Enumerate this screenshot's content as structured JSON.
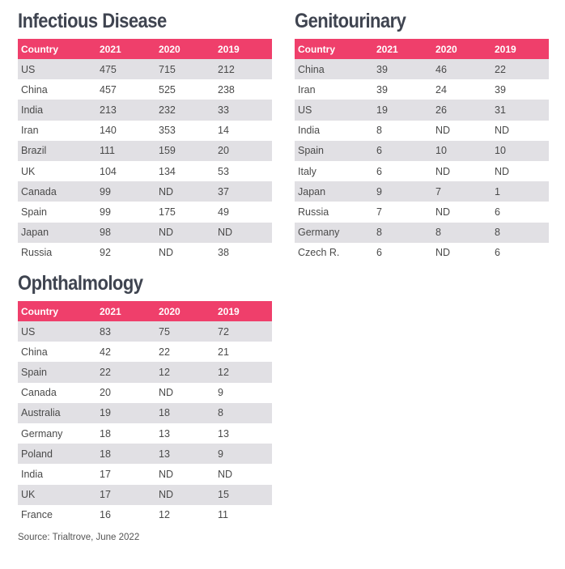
{
  "tables": {
    "infectious": {
      "title": "Infectious Disease",
      "headers": [
        "Country",
        "2021",
        "2020",
        "2019"
      ],
      "rows": [
        [
          "US",
          "475",
          "715",
          "212"
        ],
        [
          "China",
          "457",
          "525",
          "238"
        ],
        [
          "India",
          "213",
          "232",
          "33"
        ],
        [
          "Iran",
          "140",
          "353",
          "14"
        ],
        [
          "Brazil",
          "111",
          "159",
          "20"
        ],
        [
          "UK",
          "104",
          "134",
          "53"
        ],
        [
          "Canada",
          "99",
          "ND",
          "37"
        ],
        [
          "Spain",
          "99",
          "175",
          "49"
        ],
        [
          "Japan",
          "98",
          "ND",
          "ND"
        ],
        [
          "Russia",
          "92",
          "ND",
          "38"
        ]
      ]
    },
    "genitourinary": {
      "title": "Genitourinary",
      "headers": [
        "Country",
        "2021",
        "2020",
        "2019"
      ],
      "rows": [
        [
          "China",
          "39",
          "46",
          "22"
        ],
        [
          "Iran",
          "39",
          "24",
          "39"
        ],
        [
          "US",
          "19",
          "26",
          "31"
        ],
        [
          "India",
          "8",
          "ND",
          "ND"
        ],
        [
          "Spain",
          "6",
          "10",
          "10"
        ],
        [
          "Italy",
          "6",
          "ND",
          "ND"
        ],
        [
          "Japan",
          "9",
          "7",
          "1"
        ],
        [
          "Russia",
          "7",
          "ND",
          "6"
        ],
        [
          "Germany",
          "8",
          "8",
          "8"
        ],
        [
          "Czech R.",
          "6",
          "ND",
          "6"
        ]
      ]
    },
    "ophthalmology": {
      "title": "Ophthalmology",
      "headers": [
        "Country",
        "2021",
        "2020",
        "2019"
      ],
      "rows": [
        [
          "US",
          "83",
          "75",
          "72"
        ],
        [
          "China",
          "42",
          "22",
          "21"
        ],
        [
          "Spain",
          "22",
          "12",
          "12"
        ],
        [
          "Canada",
          "20",
          "ND",
          "9"
        ],
        [
          "Australia",
          "19",
          "18",
          "8"
        ],
        [
          "Germany",
          "18",
          "13",
          "13"
        ],
        [
          "Poland",
          "18",
          "13",
          "9"
        ],
        [
          "India",
          "17",
          "ND",
          "ND"
        ],
        [
          "UK",
          "17",
          "ND",
          "15"
        ],
        [
          "France",
          "16",
          "12",
          "11"
        ]
      ]
    }
  },
  "source": "Source: Trialtrove, June 2022",
  "colors": {
    "header_bg": "#ef3f6b",
    "stripe": "#e1e0e4",
    "title": "#3f4450"
  }
}
